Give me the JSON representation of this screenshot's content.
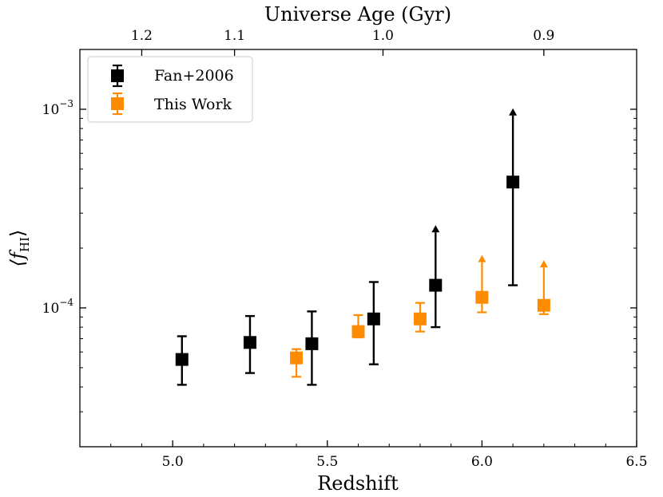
{
  "chart_data": {
    "type": "scatter",
    "xlabel": "Redshift",
    "ylabel": "⟨f",
    "ylabel_sub": "HI",
    "ylabel_close": "⟩",
    "top_xlabel": "Universe Age (Gyr)",
    "xlim": [
      4.7,
      6.5
    ],
    "ylim": [
      2e-05,
      0.002
    ],
    "yscale": "log",
    "x_ticks": [
      {
        "value": 5.0,
        "label": "5.0"
      },
      {
        "value": 5.5,
        "label": "5.5"
      },
      {
        "value": 6.0,
        "label": "6.0"
      },
      {
        "value": 6.5,
        "label": "6.5"
      }
    ],
    "y_ticks": [
      {
        "value": 0.001,
        "base": "10",
        "exp": "−3"
      },
      {
        "value": 0.0001,
        "base": "10",
        "exp": "−4"
      }
    ],
    "top_ticks": [
      {
        "z": 4.9,
        "label": "1.2"
      },
      {
        "z": 5.2,
        "label": "1.1"
      },
      {
        "z": 5.68,
        "label": "1.0"
      },
      {
        "z": 6.2,
        "label": "0.9"
      }
    ],
    "legend_position": "top-left",
    "series": [
      {
        "name": "Fan+2006",
        "color": "#000000",
        "points": [
          {
            "x": 5.03,
            "y": 5.5e-05,
            "ylo": 4.1e-05,
            "yhi": 7.2e-05,
            "lower_limit": false
          },
          {
            "x": 5.25,
            "y": 6.7e-05,
            "ylo": 4.7e-05,
            "yhi": 9.1e-05,
            "lower_limit": false
          },
          {
            "x": 5.45,
            "y": 6.6e-05,
            "ylo": 4.1e-05,
            "yhi": 9.6e-05,
            "lower_limit": false
          },
          {
            "x": 5.65,
            "y": 8.8e-05,
            "ylo": 5.2e-05,
            "yhi": 0.000135,
            "lower_limit": false
          },
          {
            "x": 5.85,
            "y": 0.00013,
            "ylo": 8e-05,
            "yhi": 0.00024,
            "lower_limit": true
          },
          {
            "x": 6.1,
            "y": 0.00043,
            "ylo": 0.00013,
            "yhi": 0.00093,
            "lower_limit": true
          }
        ]
      },
      {
        "name": "This Work",
        "color": "#ff8c00",
        "points": [
          {
            "x": 5.4,
            "y": 5.6e-05,
            "ylo": 4.5e-05,
            "yhi": 6.2e-05,
            "lower_limit": false
          },
          {
            "x": 5.6,
            "y": 7.6e-05,
            "ylo": 7.1e-05,
            "yhi": 9.2e-05,
            "lower_limit": false
          },
          {
            "x": 5.8,
            "y": 8.8e-05,
            "ylo": 7.6e-05,
            "yhi": 0.000106,
            "lower_limit": false
          },
          {
            "x": 6.0,
            "y": 0.000113,
            "ylo": 9.5e-05,
            "yhi": 0.00017,
            "lower_limit": true
          },
          {
            "x": 6.2,
            "y": 0.000103,
            "ylo": 9.3e-05,
            "yhi": 0.00016,
            "lower_limit": true
          }
        ]
      }
    ]
  }
}
